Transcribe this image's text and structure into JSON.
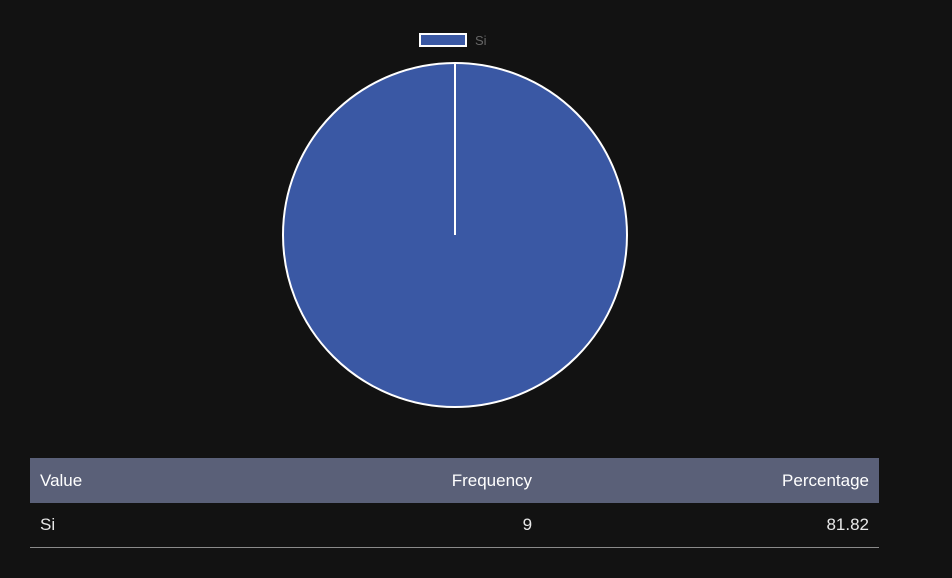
{
  "chart_data": {
    "type": "pie",
    "categories": [
      "Si"
    ],
    "values": [
      9
    ],
    "colors": [
      "#3a58a4"
    ],
    "legend": {
      "labels": [
        "Si"
      ],
      "placement": "top"
    }
  },
  "table": {
    "headers": {
      "value": "Value",
      "frequency": "Frequency",
      "percentage": "Percentage"
    },
    "rows": [
      {
        "value": "Si",
        "frequency": "9",
        "percentage": "81.82"
      }
    ]
  }
}
